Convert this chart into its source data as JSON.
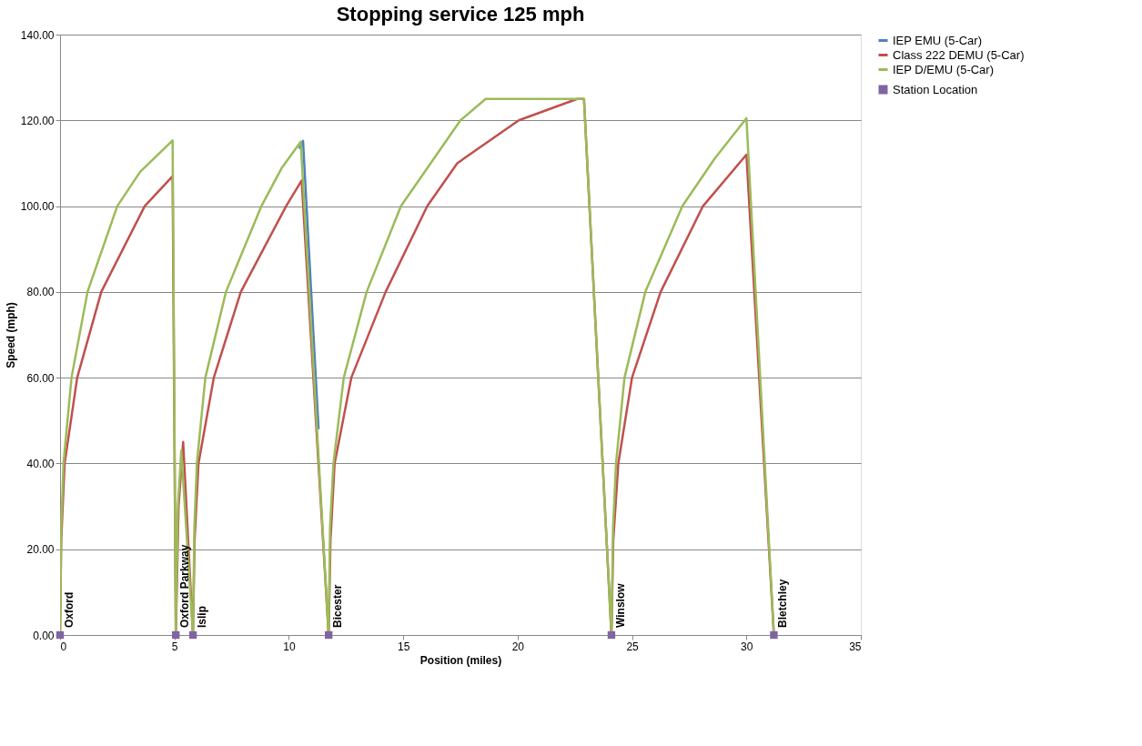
{
  "chart_data": {
    "type": "line",
    "title": "Stopping service 125 mph",
    "xlabel": "Position (miles)",
    "ylabel": "Speed (mph)",
    "xlim": [
      0,
      35
    ],
    "xticks": [
      0,
      5,
      10,
      15,
      20,
      25,
      30,
      35
    ],
    "ylim": [
      0,
      140
    ],
    "yticks": [
      {
        "value": 0,
        "label": "0.00"
      },
      {
        "value": 20,
        "label": "20.00"
      },
      {
        "value": 40,
        "label": "40.00"
      },
      {
        "value": 60,
        "label": "60.00"
      },
      {
        "value": 80,
        "label": "80.00"
      },
      {
        "value": 100,
        "label": "100.00"
      },
      {
        "value": 120,
        "label": "120.00"
      },
      {
        "value": 140,
        "label": "140.00"
      }
    ],
    "grid": "y",
    "legend": "right",
    "line_style": "solid",
    "series": [
      {
        "name": "IEP EMU (5-Car)",
        "color": "#4f81bd",
        "x": [
          10.45,
          10.62,
          11.3
        ],
        "values": [
          113.4,
          115.2,
          48
        ]
      },
      {
        "name": "Class 222 DEMU (5-Car)",
        "color": "#c0504d",
        "x": [
          0,
          0.05,
          0.2,
          0.75,
          1.8,
          3.7,
          4.92,
          5.06,
          5.18,
          5.38,
          5.81,
          5.88,
          6.05,
          6.72,
          7.9,
          9.88,
          10.56,
          11.74,
          11.82,
          12.0,
          12.73,
          14.23,
          16.05,
          17.36,
          20.05,
          22.6,
          22.9,
          24.1,
          24.18,
          24.4,
          25.0,
          26.25,
          28.1,
          30.0,
          31.2
        ],
        "values": [
          0,
          22,
          40,
          60,
          80,
          100,
          107,
          0,
          30,
          45,
          0,
          22,
          40,
          60,
          80,
          100,
          106,
          0,
          22,
          40,
          60,
          80,
          100,
          110,
          120,
          125,
          125,
          0,
          22,
          40,
          60,
          80,
          100,
          112,
          0
        ]
      },
      {
        "name": "IEP D/EMU (5-Car)",
        "color": "#9bbb59",
        "x": [
          0,
          0.05,
          0.15,
          0.5,
          1.2,
          2.5,
          3.5,
          4.92,
          5.06,
          5.15,
          5.3,
          5.81,
          5.87,
          5.98,
          6.35,
          7.25,
          8.8,
          9.7,
          10.52,
          11.74,
          11.8,
          11.95,
          12.4,
          13.4,
          14.9,
          17.5,
          18.6,
          22.9,
          24.1,
          24.17,
          24.3,
          24.67,
          25.58,
          27.2,
          28.6,
          30.0,
          31.2
        ],
        "values": [
          0,
          25,
          40,
          60,
          80,
          100,
          108,
          115.3,
          0,
          30,
          43,
          0,
          25,
          40,
          60,
          80,
          100,
          109,
          115,
          0,
          25,
          40,
          60,
          80,
          100,
          120,
          125,
          125,
          0,
          25,
          40,
          60,
          80,
          100,
          111,
          120.5,
          0
        ]
      },
      {
        "name": "Station Location",
        "color": "#8064a2",
        "type": "scatter",
        "marker": "square",
        "x": [
          0,
          5.06,
          5.81,
          11.74,
          24.1,
          31.2
        ],
        "values": [
          0,
          0,
          0,
          0,
          0,
          0
        ]
      }
    ],
    "annotations": [
      {
        "text": "Oxford",
        "x": 0,
        "y": 0
      },
      {
        "text": "Oxford Parkway",
        "x": 5.06,
        "y": 0
      },
      {
        "text": "Islip",
        "x": 5.81,
        "y": 0
      },
      {
        "text": "Bicester",
        "x": 11.74,
        "y": 0
      },
      {
        "text": "Winslow",
        "x": 24.1,
        "y": 0
      },
      {
        "text": "Bletchley",
        "x": 31.2,
        "y": 0
      }
    ]
  }
}
